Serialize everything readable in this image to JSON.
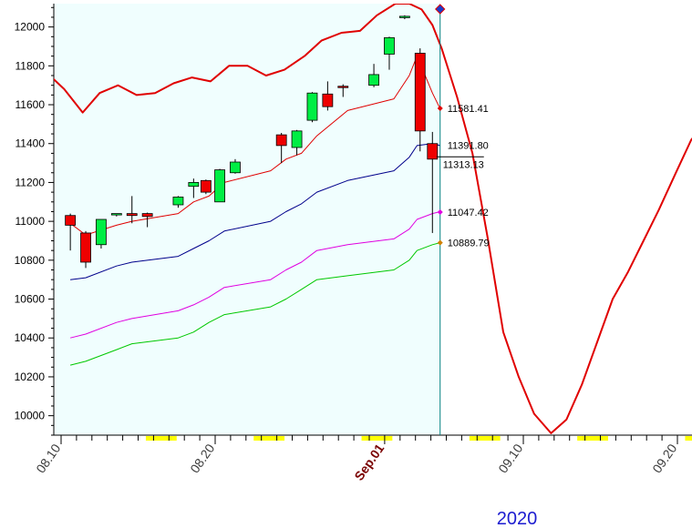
{
  "chart_data": {
    "type": "candlestick",
    "ylim": [
      9900,
      12120
    ],
    "y_ticks": [
      10000,
      10200,
      10400,
      10600,
      10800,
      11000,
      11200,
      11400,
      11600,
      11800,
      12000
    ],
    "x_tick_labels": [
      {
        "label": "08.10",
        "x": 0,
        "highlight": false
      },
      {
        "label": "08.20",
        "x": 10,
        "highlight": false
      },
      {
        "label": "Sep.01",
        "x": 21,
        "highlight": true
      },
      {
        "label": "09.10",
        "x": 30,
        "highlight": false
      },
      {
        "label": "09.20",
        "x": 40,
        "highlight": false
      }
    ],
    "year_label": "2020",
    "cursor_x": 24.6,
    "candles": [
      {
        "x": 0.6,
        "open": 11030,
        "high": 11040,
        "low": 10850,
        "close": 10980
      },
      {
        "x": 1.6,
        "open": 10940,
        "high": 10950,
        "low": 10760,
        "close": 10790
      },
      {
        "x": 2.6,
        "open": 10880,
        "high": 11010,
        "low": 10860,
        "close": 11010
      },
      {
        "x": 3.6,
        "open": 11035,
        "high": 11040,
        "low": 11025,
        "close": 11040
      },
      {
        "x": 4.6,
        "open": 11040,
        "high": 11130,
        "low": 10990,
        "close": 11030
      },
      {
        "x": 5.6,
        "open": 11040,
        "high": 11045,
        "low": 10970,
        "close": 11025
      },
      {
        "x": 7.6,
        "open": 11085,
        "high": 11130,
        "low": 11070,
        "close": 11125
      },
      {
        "x": 8.6,
        "open": 11180,
        "high": 11220,
        "low": 11120,
        "close": 11200
      },
      {
        "x": 9.4,
        "open": 11210,
        "high": 11215,
        "low": 11140,
        "close": 11150
      },
      {
        "x": 10.3,
        "open": 11100,
        "high": 11270,
        "low": 11100,
        "close": 11265
      },
      {
        "x": 11.3,
        "open": 11250,
        "high": 11320,
        "low": 11245,
        "close": 11305
      },
      {
        "x": 14.3,
        "open": 11445,
        "high": 11455,
        "low": 11300,
        "close": 11390
      },
      {
        "x": 15.3,
        "open": 11380,
        "high": 11470,
        "low": 11340,
        "close": 11465
      },
      {
        "x": 16.3,
        "open": 11520,
        "high": 11665,
        "low": 11510,
        "close": 11660
      },
      {
        "x": 17.3,
        "open": 11655,
        "high": 11720,
        "low": 11570,
        "close": 11590
      },
      {
        "x": 18.3,
        "open": 11695,
        "high": 11705,
        "low": 11640,
        "close": 11690
      },
      {
        "x": 20.3,
        "open": 11700,
        "high": 11810,
        "low": 11690,
        "close": 11755
      },
      {
        "x": 21.3,
        "open": 11860,
        "high": 11950,
        "low": 11780,
        "close": 11945
      },
      {
        "x": 22.3,
        "open": 12050,
        "high": 12060,
        "low": 12040,
        "close": 12055
      },
      {
        "x": 23.3,
        "open": 11865,
        "high": 11890,
        "low": 11360,
        "close": 11465
      },
      {
        "x": 24.1,
        "open": 11400,
        "high": 11460,
        "low": 10940,
        "close": 11320
      }
    ],
    "series": [
      {
        "color": "#e00000",
        "width": 2,
        "points": [
          [
            -1,
            11770
          ],
          [
            0.2,
            11680
          ],
          [
            1.4,
            11560
          ],
          [
            2.5,
            11660
          ],
          [
            3.7,
            11700
          ],
          [
            4.9,
            11650
          ],
          [
            6.1,
            11660
          ],
          [
            7.3,
            11710
          ],
          [
            8.5,
            11740
          ],
          [
            9.7,
            11720
          ],
          [
            10.9,
            11800
          ],
          [
            12.1,
            11800
          ],
          [
            13.3,
            11750
          ],
          [
            14.5,
            11780
          ],
          [
            15.8,
            11850
          ],
          [
            16.9,
            11930
          ],
          [
            18.2,
            11970
          ],
          [
            19.4,
            11980
          ],
          [
            20.5,
            12060
          ],
          [
            21.7,
            12120
          ],
          [
            22.6,
            12120
          ],
          [
            23.4,
            12090
          ],
          [
            24.1,
            12010
          ],
          [
            24.7,
            11890
          ],
          [
            25.7,
            11640
          ],
          [
            26.7,
            11350
          ],
          [
            27.7,
            10910
          ],
          [
            28.7,
            10430
          ],
          [
            29.7,
            10200
          ],
          [
            30.7,
            10010
          ],
          [
            31.8,
            9910
          ],
          [
            32.8,
            9980
          ],
          [
            33.8,
            10160
          ],
          [
            34.8,
            10380
          ],
          [
            35.8,
            10600
          ],
          [
            36.8,
            10740
          ],
          [
            37.8,
            10900
          ],
          [
            38.8,
            11060
          ],
          [
            39.9,
            11250
          ],
          [
            40.9,
            11420
          ],
          [
            42.0,
            11520
          ],
          [
            43.0,
            11550
          ],
          [
            44.6,
            11520
          ]
        ]
      },
      {
        "color": "#e00000",
        "width": 1,
        "points": [
          [
            0.6,
            10990
          ],
          [
            1.6,
            10930
          ],
          [
            3.6,
            10980
          ],
          [
            4.6,
            11000
          ],
          [
            7.6,
            11040
          ],
          [
            8.6,
            11100
          ],
          [
            9.6,
            11130
          ],
          [
            10.6,
            11200
          ],
          [
            13.6,
            11260
          ],
          [
            14.6,
            11320
          ],
          [
            15.6,
            11350
          ],
          [
            16.6,
            11440
          ],
          [
            18.6,
            11570
          ],
          [
            21.6,
            11630
          ],
          [
            22.6,
            11750
          ],
          [
            23.1,
            11850
          ],
          [
            24.1,
            11660
          ],
          [
            24.6,
            11580
          ]
        ]
      },
      {
        "color": "#00008b",
        "width": 1,
        "points": [
          [
            0.6,
            10700
          ],
          [
            1.6,
            10710
          ],
          [
            3.6,
            10770
          ],
          [
            4.6,
            10790
          ],
          [
            7.6,
            10820
          ],
          [
            8.6,
            10860
          ],
          [
            9.6,
            10900
          ],
          [
            10.6,
            10950
          ],
          [
            13.6,
            11000
          ],
          [
            14.6,
            11050
          ],
          [
            15.6,
            11090
          ],
          [
            16.6,
            11150
          ],
          [
            18.6,
            11210
          ],
          [
            21.6,
            11260
          ],
          [
            22.6,
            11330
          ],
          [
            23.1,
            11390
          ],
          [
            24.1,
            11400
          ],
          [
            24.6,
            11390
          ]
        ]
      },
      {
        "color": "#e000e0",
        "width": 1,
        "points": [
          [
            0.6,
            10400
          ],
          [
            1.6,
            10420
          ],
          [
            3.6,
            10480
          ],
          [
            4.6,
            10500
          ],
          [
            7.6,
            10540
          ],
          [
            8.6,
            10570
          ],
          [
            9.6,
            10610
          ],
          [
            10.6,
            10660
          ],
          [
            13.6,
            10700
          ],
          [
            14.6,
            10750
          ],
          [
            15.6,
            10790
          ],
          [
            16.6,
            10850
          ],
          [
            18.6,
            10880
          ],
          [
            21.6,
            10910
          ],
          [
            22.6,
            10960
          ],
          [
            23.1,
            11010
          ],
          [
            24.1,
            11040
          ],
          [
            24.6,
            11050
          ]
        ]
      },
      {
        "color": "#00c800",
        "width": 1,
        "points": [
          [
            0.6,
            10260
          ],
          [
            1.6,
            10280
          ],
          [
            3.6,
            10340
          ],
          [
            4.6,
            10370
          ],
          [
            7.6,
            10400
          ],
          [
            8.6,
            10430
          ],
          [
            9.6,
            10480
          ],
          [
            10.6,
            10520
          ],
          [
            13.6,
            10560
          ],
          [
            14.6,
            10600
          ],
          [
            15.6,
            10650
          ],
          [
            16.6,
            10700
          ],
          [
            18.6,
            10720
          ],
          [
            21.6,
            10750
          ],
          [
            22.6,
            10800
          ],
          [
            23.1,
            10850
          ],
          [
            24.1,
            10880
          ],
          [
            24.6,
            10890
          ]
        ]
      }
    ],
    "value_labels": [
      {
        "value": 11581.41,
        "text": "11581.41",
        "color": "#e00000",
        "marker": true
      },
      {
        "value": 11391.8,
        "text": "11391.80",
        "color": "#00008b",
        "marker": false
      },
      {
        "value": 11313.13,
        "text": "11313.13",
        "color": "#000000",
        "marker": false
      },
      {
        "value": 11047.42,
        "text": "11047.42",
        "color": "#e000e0",
        "marker": true
      },
      {
        "value": 10889.79,
        "text": "10889.79",
        "color": "#d08000",
        "marker": true
      }
    ],
    "weekend_x": [
      [
        5.5,
        7.5
      ],
      [
        12.5,
        14.5
      ],
      [
        19.5,
        21.5
      ],
      [
        26.5,
        28.5
      ],
      [
        33.5,
        35.5
      ],
      [
        40.5,
        42.5
      ]
    ],
    "colors": {
      "plot_bg": "#f0fefe",
      "up": "#00ee44",
      "down": "#ee0000",
      "axis": "#000000",
      "cursor": "#008080",
      "weekend": "#ffff00"
    }
  }
}
